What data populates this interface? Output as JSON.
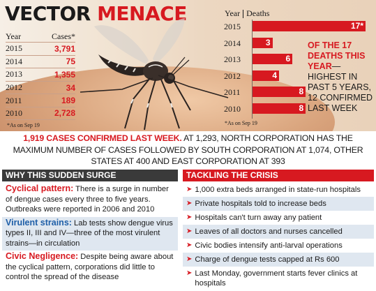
{
  "title": {
    "word1": "VECTOR",
    "word2": "MENACE"
  },
  "cases": {
    "year_label": "Year",
    "cases_label": "Cases*",
    "rows": [
      {
        "year": "2015",
        "value": "3,791"
      },
      {
        "year": "2014",
        "value": "75"
      },
      {
        "year": "2013",
        "value": "1,355"
      },
      {
        "year": "2012",
        "value": "34"
      },
      {
        "year": "2011",
        "value": "189"
      },
      {
        "year": "2010",
        "value": "2,728"
      }
    ],
    "note": "*As on Sep 19"
  },
  "chart_data": {
    "type": "bar",
    "orientation": "horizontal",
    "title": "",
    "xlabel": "",
    "ylabel": "",
    "header_year": "Year",
    "header_value": "Deaths",
    "categories": [
      "2015",
      "2014",
      "2013",
      "2012",
      "2011",
      "2010"
    ],
    "values": [
      17,
      3,
      6,
      4,
      8,
      8
    ],
    "value_labels": [
      "17*",
      "3",
      "6",
      "4",
      "8",
      "8"
    ],
    "xlim": [
      0,
      17
    ],
    "grid": false,
    "bar_color": "#d71920",
    "note": "*As on Sep 19"
  },
  "deaths_callout": {
    "highlight": "OF THE 17 DEATHS THIS YEAR",
    "rest": "—HIGHEST IN PAST 5 YEARS, 12 CONFIRMED LAST WEEK"
  },
  "summary": {
    "highlight": "1,919 CASES CONFIRMED LAST WEEK.",
    "rest": " AT 1,293, NORTH CORPORATION HAS THE MAXIMUM NUMBER OF CASES FOLLOWED BY SOUTH CORPORATION AT 1,074, OTHER STATES AT 400 AND EAST CORPORATION AT 393"
  },
  "surge": {
    "header": "WHY THIS SUDDEN SURGE",
    "sections": [
      {
        "title": "Cyclical pattern:",
        "text": " There is a surge in number of dengue cases every three to five years. Outbreaks were reported in 2006 and 2010"
      },
      {
        "title": "Virulent strains:",
        "text": " Lab tests show dengue virus types II, III and IV—three of the most virulent strains—in circulation"
      },
      {
        "title": "Civic Negligence:",
        "text": " Despite being aware about the cyclical pattern, corporations did little to control the spread of the disease"
      }
    ]
  },
  "crisis": {
    "header": "TACKLING THE CRISIS",
    "items": [
      "1,000 extra beds arranged in state-run hospitals",
      "Private hospitals told to increase beds",
      "Hospitals can't turn away any patient",
      "Leaves of all doctors and nurses cancelled",
      "Civic bodies intensify anti-larval operations",
      "Charge of dengue tests capped at Rs 600",
      "Last Monday, government starts fever clinics at hospitals"
    ]
  },
  "colors": {
    "accent": "#d71920",
    "dark": "#3a3a3a",
    "shade": "#dfe7f0"
  },
  "icons": {
    "bullet": "arrow-right-icon",
    "illustration": "mosquito-icon"
  }
}
